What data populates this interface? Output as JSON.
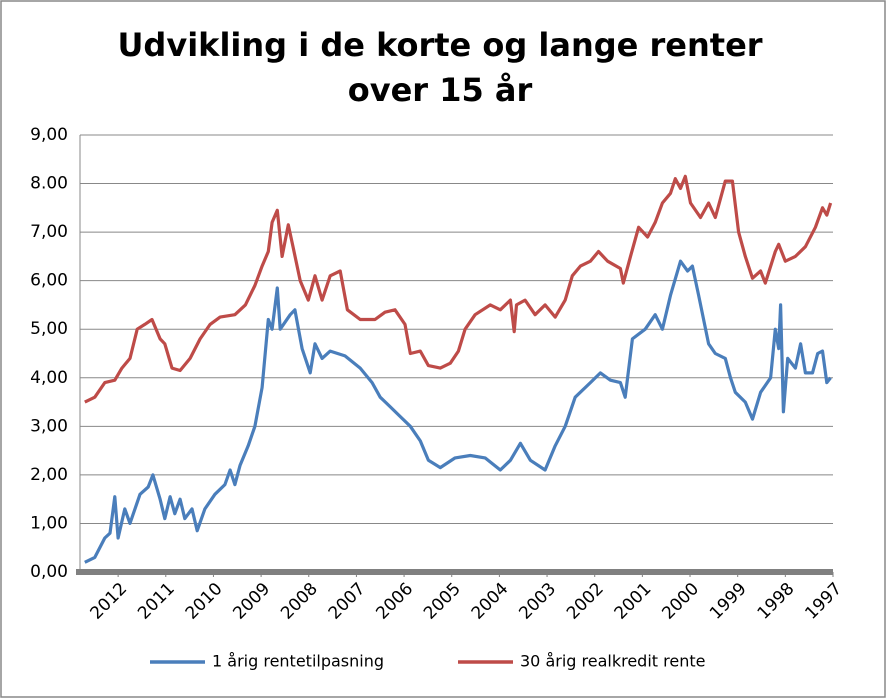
{
  "chart_data": {
    "type": "line",
    "title": "Udvikling i de korte og lange renter",
    "subtitle": "over 15 år",
    "xlim": [
      2012.8,
      1997
    ],
    "xticks": [
      2012,
      2011,
      2010,
      2009,
      2008,
      2007,
      2006,
      2005,
      2004,
      2003,
      2002,
      2001,
      2000,
      1999,
      1998,
      1997
    ],
    "ylim": [
      0,
      9
    ],
    "yticks": [
      {
        "value": 0,
        "label": "0,00"
      },
      {
        "value": 1,
        "label": "1,00"
      },
      {
        "value": 2,
        "label": "2,00"
      },
      {
        "value": 3,
        "label": "3,00"
      },
      {
        "value": 4,
        "label": "4,00"
      },
      {
        "value": 5,
        "label": "5,00"
      },
      {
        "value": 6,
        "label": "6,00"
      },
      {
        "value": 7,
        "label": "7,00"
      },
      {
        "value": 8,
        "label": "8.00"
      },
      {
        "value": 9,
        "label": "9,00"
      }
    ],
    "grid": true,
    "legend": "bottom",
    "series": [
      {
        "name": "1 årig rentetilpasning",
        "color": "#4a7ebb",
        "x": [
          2012.7,
          2012.49,
          2012.28,
          2012.17,
          2012.07,
          2012.0,
          2011.86,
          2011.75,
          2011.54,
          2011.37,
          2011.27,
          2011.12,
          2011.02,
          2010.91,
          2010.81,
          2010.7,
          2010.6,
          2010.45,
          2010.34,
          2010.18,
          2009.97,
          2009.76,
          2009.65,
          2009.55,
          2009.44,
          2009.27,
          2009.13,
          2008.98,
          2008.85,
          2008.77,
          2008.66,
          2008.6,
          2008.39,
          2008.29,
          2008.14,
          2007.97,
          2007.87,
          2007.72,
          2007.55,
          2007.24,
          2006.92,
          2006.67,
          2006.5,
          2006.29,
          2006.08,
          2005.87,
          2005.66,
          2005.49,
          2005.24,
          2004.93,
          2004.61,
          2004.3,
          2003.98,
          2003.77,
          2003.56,
          2003.35,
          2003.04,
          2002.83,
          2002.62,
          2002.41,
          2002.09,
          2001.88,
          2001.67,
          2001.46,
          2001.36,
          2001.21,
          2000.94,
          2000.73,
          2000.58,
          2000.41,
          2000.2,
          2000.05,
          1999.95,
          1999.82,
          1999.61,
          1999.47,
          1999.26,
          1999.15,
          1999.05,
          1998.84,
          1998.69,
          1998.52,
          1998.31,
          1998.21,
          1998.14,
          1998.1,
          1998.04,
          1997.95,
          1997.79,
          1997.68,
          1997.58,
          1997.43,
          1997.32,
          1997.22,
          1997.13,
          1997.05
        ],
        "values": [
          0.2,
          0.3,
          0.7,
          0.8,
          1.55,
          0.7,
          1.3,
          1.0,
          1.6,
          1.75,
          2.0,
          1.5,
          1.1,
          1.55,
          1.2,
          1.5,
          1.1,
          1.3,
          0.85,
          1.3,
          1.6,
          1.8,
          2.1,
          1.8,
          2.2,
          2.6,
          3.0,
          3.8,
          5.2,
          5.0,
          5.85,
          5.0,
          5.3,
          5.4,
          4.6,
          4.1,
          4.7,
          4.4,
          4.55,
          4.45,
          4.2,
          3.9,
          3.6,
          3.4,
          3.2,
          3.0,
          2.7,
          2.3,
          2.15,
          2.35,
          2.4,
          2.35,
          2.1,
          2.3,
          2.65,
          2.3,
          2.1,
          2.6,
          3.0,
          3.6,
          3.9,
          4.1,
          3.95,
          3.9,
          3.6,
          4.8,
          5.0,
          5.3,
          5.0,
          5.7,
          6.4,
          6.2,
          6.3,
          5.7,
          4.7,
          4.5,
          4.4,
          4.0,
          3.7,
          3.5,
          3.15,
          3.7,
          4.0,
          5.0,
          4.6,
          5.5,
          3.3,
          4.4,
          4.2,
          4.7,
          4.1,
          4.1,
          4.5,
          4.55,
          3.9,
          4.0
        ]
      },
      {
        "name": "30 årig realkredit rente",
        "color": "#be4b48",
        "x": [
          2012.7,
          2012.49,
          2012.28,
          2012.07,
          2011.92,
          2011.75,
          2011.6,
          2011.44,
          2011.29,
          2011.12,
          2011.02,
          2010.87,
          2010.7,
          2010.49,
          2010.28,
          2010.07,
          2009.86,
          2009.55,
          2009.33,
          2009.13,
          2008.98,
          2008.85,
          2008.77,
          2008.66,
          2008.56,
          2008.43,
          2008.33,
          2008.18,
          2008.01,
          2007.87,
          2007.72,
          2007.55,
          2007.34,
          2007.19,
          2006.92,
          2006.61,
          2006.4,
          2006.19,
          2005.98,
          2005.87,
          2005.66,
          2005.49,
          2005.24,
          2005.03,
          2004.86,
          2004.72,
          2004.51,
          2004.19,
          2003.98,
          2003.77,
          2003.69,
          2003.64,
          2003.46,
          2003.25,
          2003.04,
          2002.83,
          2002.62,
          2002.47,
          2002.3,
          2002.09,
          2001.92,
          2001.73,
          2001.46,
          2001.4,
          2001.25,
          2001.08,
          2000.89,
          2000.73,
          2000.58,
          2000.41,
          2000.31,
          2000.2,
          2000.1,
          1999.99,
          1999.78,
          1999.61,
          1999.47,
          1999.26,
          1999.11,
          1998.98,
          1998.84,
          1998.69,
          1998.52,
          1998.42,
          1998.21,
          1998.14,
          1998.0,
          1997.79,
          1997.58,
          1997.37,
          1997.22,
          1997.13,
          1997.05
        ],
        "values": [
          3.5,
          3.6,
          3.9,
          3.95,
          4.2,
          4.4,
          5.0,
          5.1,
          5.2,
          4.8,
          4.7,
          4.2,
          4.15,
          4.4,
          4.8,
          5.1,
          5.25,
          5.3,
          5.5,
          5.9,
          6.3,
          6.6,
          7.2,
          7.45,
          6.5,
          7.15,
          6.7,
          6.0,
          5.6,
          6.1,
          5.6,
          6.1,
          6.2,
          5.4,
          5.2,
          5.2,
          5.35,
          5.4,
          5.1,
          4.5,
          4.55,
          4.25,
          4.2,
          4.3,
          4.55,
          5.0,
          5.3,
          5.5,
          5.4,
          5.6,
          4.95,
          5.5,
          5.6,
          5.3,
          5.5,
          5.25,
          5.6,
          6.1,
          6.3,
          6.4,
          6.6,
          6.4,
          6.25,
          5.95,
          6.5,
          7.1,
          6.9,
          7.2,
          7.6,
          7.8,
          8.1,
          7.9,
          8.15,
          7.6,
          7.3,
          7.6,
          7.3,
          8.05,
          8.05,
          7.0,
          6.5,
          6.05,
          6.2,
          5.95,
          6.6,
          6.75,
          6.4,
          6.5,
          6.7,
          7.1,
          7.5,
          7.35,
          7.6
        ]
      }
    ]
  }
}
